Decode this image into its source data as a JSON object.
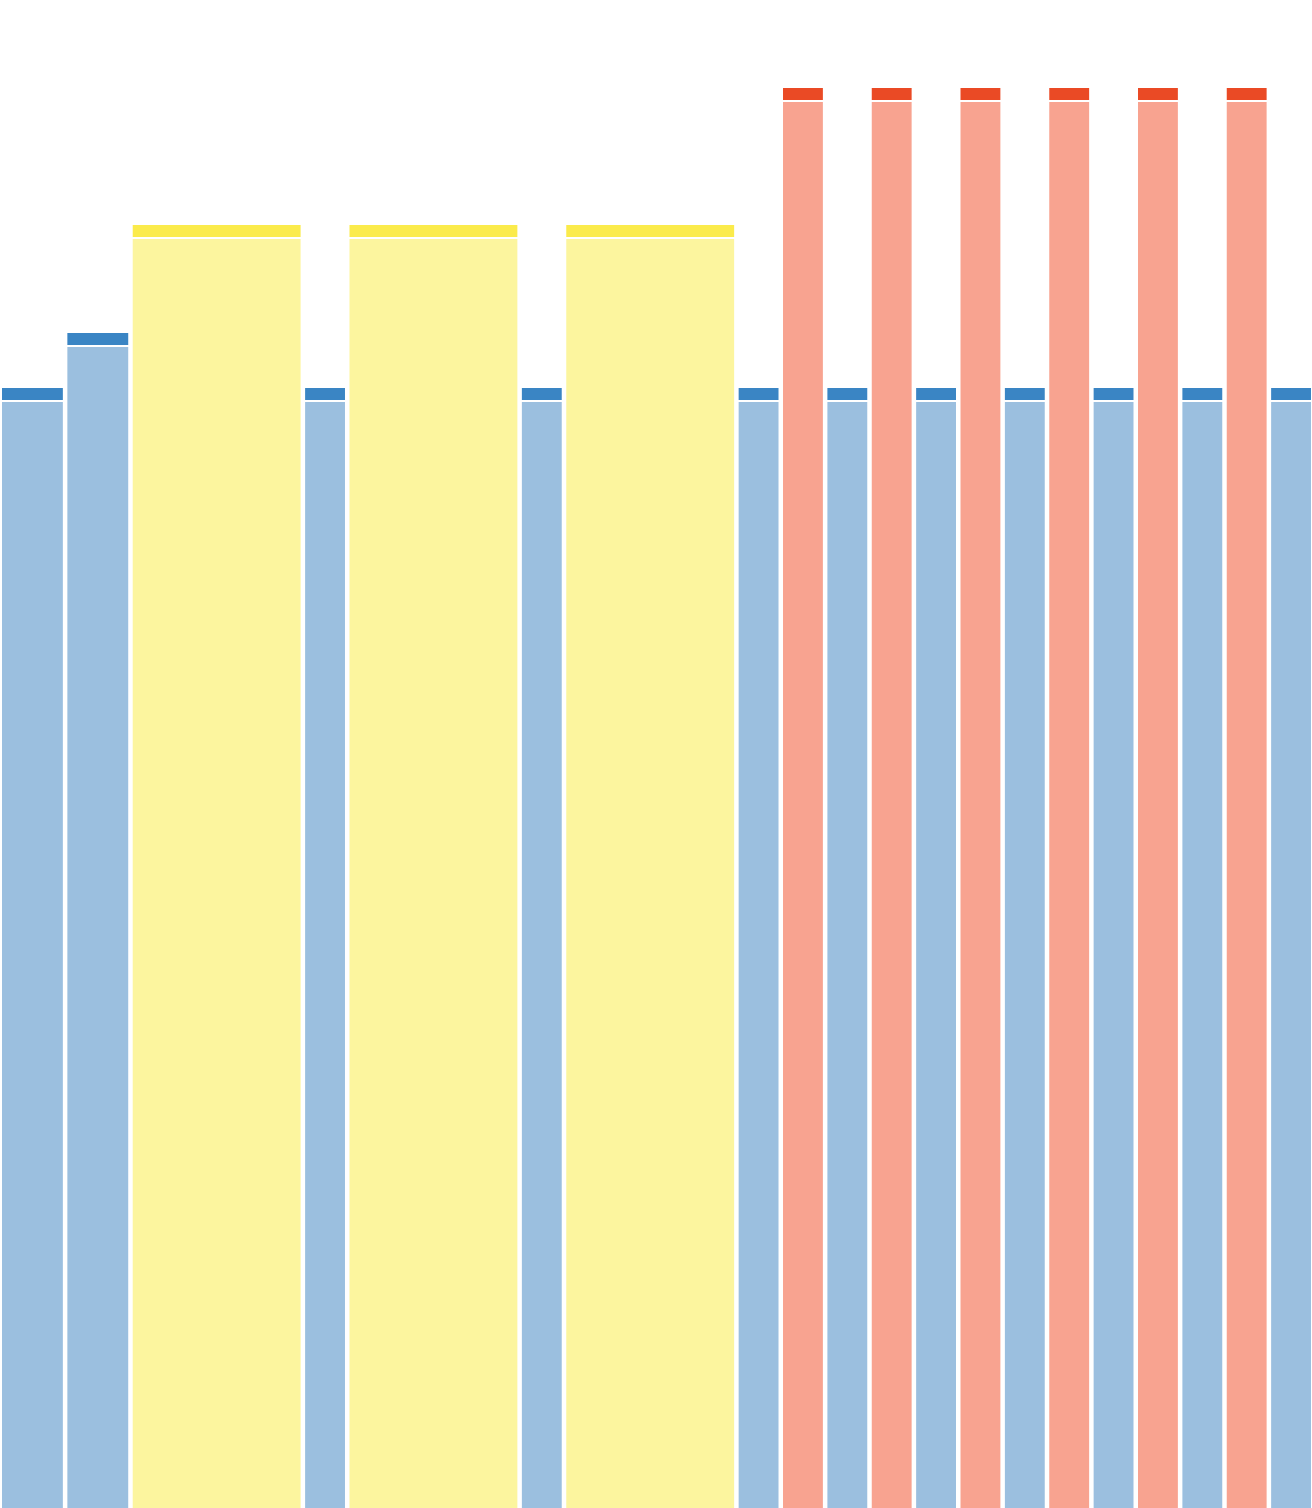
{
  "chart_data": {
    "type": "bar",
    "title": "",
    "xlabel": "",
    "ylabel": "",
    "ylim": [
      0,
      1420
    ],
    "colors": {
      "blue_fill": "#9bbfdf",
      "blue_cap": "#3a85c4",
      "yellow_fill": "#fcf59e",
      "yellow_cap": "#fbeb4b",
      "red_fill": "#f8a390",
      "red_cap": "#ea4a25",
      "gap": "#ffffff"
    },
    "bars": [
      {
        "group": "blue",
        "value": 1120,
        "weight": 1.45
      },
      {
        "group": "blue",
        "value": 1175,
        "weight": 1.45
      },
      {
        "group": "yellow",
        "value": 1283,
        "weight": 4.0
      },
      {
        "group": "blue",
        "value": 1120,
        "weight": 0.95
      },
      {
        "group": "yellow",
        "value": 1283,
        "weight": 4.0
      },
      {
        "group": "blue",
        "value": 1120,
        "weight": 0.95
      },
      {
        "group": "yellow",
        "value": 1283,
        "weight": 4.0
      },
      {
        "group": "blue",
        "value": 1120,
        "weight": 0.95
      },
      {
        "group": "red",
        "value": 1420,
        "weight": 0.95
      },
      {
        "group": "blue",
        "value": 1120,
        "weight": 0.95
      },
      {
        "group": "red",
        "value": 1420,
        "weight": 0.95
      },
      {
        "group": "blue",
        "value": 1120,
        "weight": 0.95
      },
      {
        "group": "red",
        "value": 1420,
        "weight": 0.95
      },
      {
        "group": "blue",
        "value": 1120,
        "weight": 0.95
      },
      {
        "group": "red",
        "value": 1420,
        "weight": 0.95
      },
      {
        "group": "blue",
        "value": 1120,
        "weight": 0.95
      },
      {
        "group": "red",
        "value": 1420,
        "weight": 0.95
      },
      {
        "group": "blue",
        "value": 1120,
        "weight": 0.95
      },
      {
        "group": "red",
        "value": 1420,
        "weight": 0.95
      },
      {
        "group": "blue",
        "value": 1120,
        "weight": 0.95
      }
    ]
  }
}
